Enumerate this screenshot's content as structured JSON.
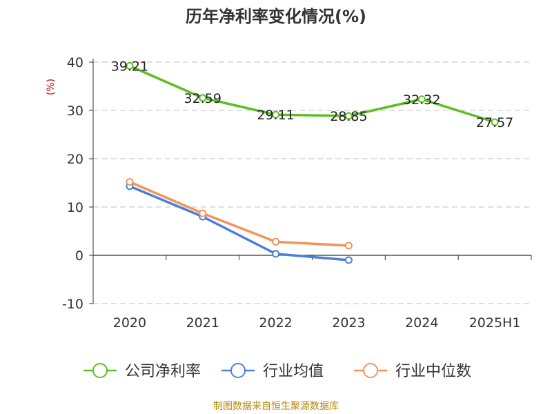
{
  "title": "历年净利率变化情况(%)",
  "source": "制图数据来自恒生聚源数据库",
  "colors": {
    "company": "#5bbf22",
    "industry_avg": "#4a7fd9",
    "industry_median": "#f5925a"
  },
  "chart_data": {
    "type": "line",
    "title": "历年净利率变化情况(%)",
    "ylabel": "(%)",
    "categories": [
      "2020",
      "2021",
      "2022",
      "2023",
      "2024",
      "2025H1"
    ],
    "ylim": [
      -10,
      40
    ],
    "yticks": [
      -10,
      0,
      10,
      20,
      30,
      40
    ],
    "grid": true,
    "legend_position": "bottom",
    "series": [
      {
        "name": "公司净利率",
        "color": "#5bbf22",
        "values": [
          39.21,
          32.59,
          29.11,
          28.85,
          32.32,
          27.57
        ],
        "labels": [
          "39.21",
          "32.59",
          "29.11",
          "28.85",
          "32.32",
          "27.57"
        ]
      },
      {
        "name": "行业均值",
        "color": "#4a7fd9",
        "values": [
          14.3,
          8.0,
          0.3,
          -1.0,
          null,
          null
        ]
      },
      {
        "name": "行业中位数",
        "color": "#f5925a",
        "values": [
          15.2,
          8.7,
          2.8,
          2.0,
          null,
          null
        ]
      }
    ]
  }
}
